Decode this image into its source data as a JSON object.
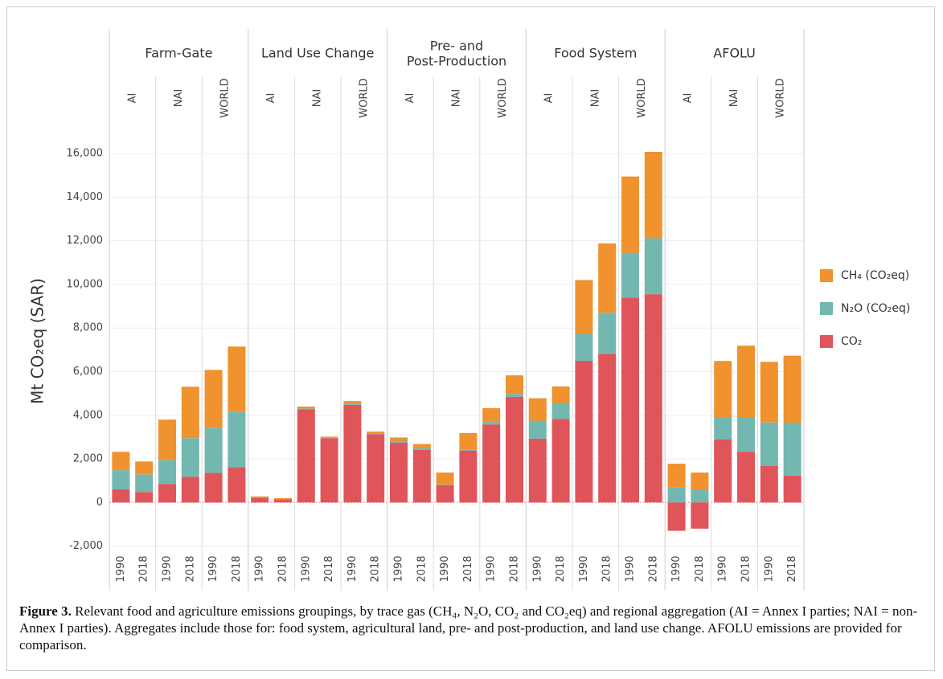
{
  "chart_data": {
    "type": "stacked-bar",
    "y_label": "Mt CO₂eq (SAR)",
    "groups": [
      {
        "name": "Farm-Gate",
        "regions": [
          "AI",
          "NAI",
          "WORLD"
        ]
      },
      {
        "name": "Land Use Change",
        "regions": [
          "AI",
          "NAI",
          "WORLD"
        ]
      },
      {
        "name": "Pre- and\nPost-Production",
        "regions": [
          "AI",
          "NAI",
          "WORLD"
        ]
      },
      {
        "name": "Food System",
        "regions": [
          "AI",
          "NAI",
          "WORLD"
        ]
      },
      {
        "name": "AFOLU",
        "regions": [
          "AI",
          "NAI",
          "WORLD"
        ]
      }
    ],
    "categories": [
      "1990",
      "2018",
      "1990",
      "2018",
      "1990",
      "2018",
      "1990",
      "2018",
      "1990",
      "2018",
      "1990",
      "2018",
      "1990",
      "2018",
      "1990",
      "2018",
      "1990",
      "2018",
      "1990",
      "2018",
      "1990",
      "2018",
      "1990",
      "2018",
      "1990",
      "2018",
      "1990",
      "2018",
      "1990",
      "2018"
    ],
    "series": [
      {
        "name": "CO₂",
        "color": "#e0555a",
        "values": [
          600,
          480,
          850,
          1180,
          1360,
          1620,
          220,
          150,
          4270,
          2950,
          4480,
          3130,
          2750,
          2420,
          790,
          2380,
          3580,
          4850,
          2930,
          3830,
          6500,
          6820,
          9400,
          9550,
          -1300,
          -1200,
          2900,
          2330,
          1670,
          1230
        ]
      },
      {
        "name": "N₂O (CO₂eq)",
        "color": "#72b8b0",
        "values": [
          880,
          810,
          1100,
          1770,
          2070,
          2550,
          20,
          10,
          40,
          20,
          60,
          30,
          80,
          80,
          30,
          60,
          110,
          130,
          820,
          730,
          1230,
          1880,
          2050,
          2570,
          680,
          600,
          1020,
          1550,
          2000,
          2430
        ]
      },
      {
        "name": "CH₄ (CO₂eq)",
        "color": "#f0922e",
        "values": [
          840,
          590,
          1850,
          2360,
          2650,
          2980,
          40,
          40,
          90,
          50,
          110,
          90,
          150,
          180,
          550,
          740,
          640,
          850,
          1030,
          760,
          2470,
          3180,
          3500,
          3960,
          1100,
          770,
          2570,
          3310,
          2780,
          3070
        ]
      }
    ],
    "ylim": [
      -2200,
      17000
    ],
    "yticks": [
      {
        "value": -2000,
        "label": "-2,000"
      },
      0,
      {
        "value": 2000,
        "label": "2,000"
      },
      {
        "value": 4000,
        "label": "4,000"
      },
      {
        "value": 6000,
        "label": "6,000"
      },
      {
        "value": 8000,
        "label": "8,000"
      },
      {
        "value": 10000,
        "label": "10,000"
      },
      {
        "value": 12000,
        "label": "12,000"
      },
      {
        "value": 14000,
        "label": "14,000"
      },
      {
        "value": 16000,
        "label": "16,000"
      }
    ],
    "grid": true,
    "legend": "right"
  },
  "caption": {
    "label": "Figure 3.",
    "text": "Relevant food and agriculture emissions groupings, by trace gas (CH₄, N₂O, CO₂ and CO₂eq) and regional aggregation (AI = Annex I parties; NAI = non-Annex I parties). Aggregates include those for: food system, agricultural land, pre- and post-production, and land use change. AFOLU emissions are provided for comparison."
  }
}
